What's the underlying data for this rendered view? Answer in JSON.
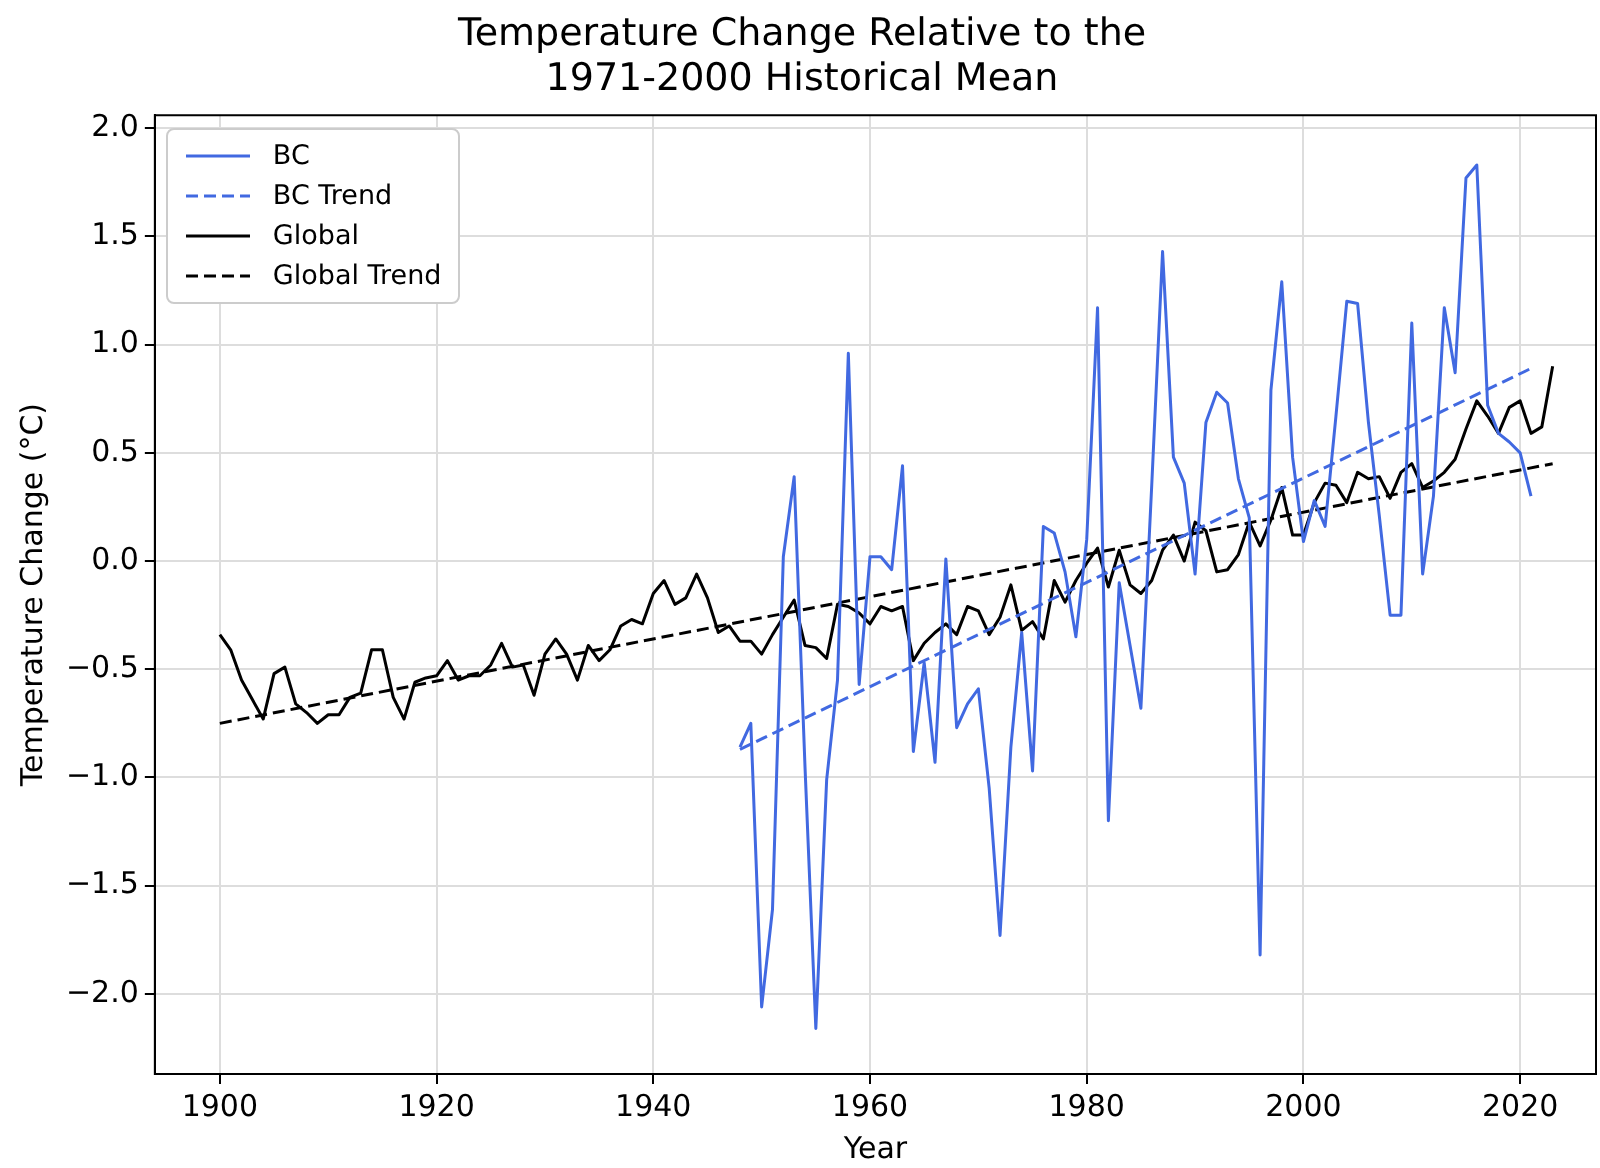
{
  "chart_data": {
    "type": "line",
    "title": "Temperature Change Relative to the\n1971-2000 Historical Mean",
    "xlabel": "Year",
    "ylabel": "Temperature Change (°C)",
    "xlim": [
      1894,
      2027
    ],
    "xticks": [
      1900,
      1920,
      1940,
      1960,
      1980,
      2000,
      2020
    ],
    "ylim": [
      -2.37,
      2.06
    ],
    "yticks": [
      {
        "value": -2,
        "label": "−2.0"
      },
      {
        "value": -1.5,
        "label": "−1.5"
      },
      {
        "value": -1,
        "label": "−1.0"
      },
      {
        "value": -0.5,
        "label": "−0.5"
      },
      {
        "value": 0,
        "label": "0.0"
      },
      {
        "value": 0.5,
        "label": "0.5"
      },
      {
        "value": 1,
        "label": "1.0"
      },
      {
        "value": 1.5,
        "label": "1.5"
      },
      {
        "value": 2,
        "label": "2.0"
      }
    ],
    "grid": true,
    "legend": "top left",
    "series": [
      {
        "name": "BC",
        "color": "#4169e1",
        "line_style": "solid",
        "x": [
          1948,
          1949,
          1950,
          1951,
          1952,
          1953,
          1954,
          1955,
          1956,
          1957,
          1958,
          1959,
          1960,
          1961,
          1962,
          1963,
          1964,
          1965,
          1966,
          1967,
          1968,
          1969,
          1970,
          1971,
          1972,
          1973,
          1974,
          1975,
          1976,
          1977,
          1978,
          1979,
          1980,
          1981,
          1982,
          1983,
          1984,
          1985,
          1986,
          1987,
          1988,
          1989,
          1990,
          1991,
          1992,
          1993,
          1994,
          1995,
          1996,
          1997,
          1998,
          1999,
          2000,
          2001,
          2002,
          2003,
          2004,
          2005,
          2006,
          2007,
          2008,
          2009,
          2010,
          2011,
          2012,
          2013,
          2014,
          2015,
          2016,
          2017,
          2018,
          2019,
          2020,
          2021
        ],
        "values": [
          -0.86,
          -0.75,
          -2.06,
          -1.61,
          0.02,
          0.39,
          -0.95,
          -2.16,
          -1.01,
          -0.55,
          0.96,
          -0.57,
          0.02,
          0.02,
          -0.04,
          0.44,
          -0.88,
          -0.47,
          -0.93,
          0.01,
          -0.77,
          -0.66,
          -0.59,
          -1.05,
          -1.73,
          -0.86,
          -0.33,
          -0.97,
          0.16,
          0.13,
          -0.05,
          -0.35,
          0.1,
          1.17,
          -1.2,
          -0.1,
          -0.39,
          -0.68,
          0.35,
          1.43,
          0.48,
          0.36,
          -0.06,
          0.64,
          0.78,
          0.73,
          0.38,
          0.2,
          -1.82,
          0.79,
          1.29,
          0.48,
          0.09,
          0.28,
          0.16,
          0.67,
          1.2,
          1.19,
          0.64,
          0.21,
          -0.25,
          -0.25,
          1.1,
          -0.06,
          0.3,
          1.17,
          0.87,
          1.77,
          1.83,
          0.72,
          0.59,
          0.55,
          0.5,
          0.3
        ]
      },
      {
        "name": "BC Trend",
        "color": "#4169e1",
        "line_style": "dashed",
        "x": [
          1948,
          2021
        ],
        "values": [
          -0.87,
          0.89
        ]
      },
      {
        "name": "Global",
        "color": "#000000",
        "line_style": "solid",
        "x": [
          1900,
          1901,
          1902,
          1903,
          1904,
          1905,
          1906,
          1907,
          1908,
          1909,
          1910,
          1911,
          1912,
          1913,
          1914,
          1915,
          1916,
          1917,
          1918,
          1919,
          1920,
          1921,
          1922,
          1923,
          1924,
          1925,
          1926,
          1927,
          1928,
          1929,
          1930,
          1931,
          1932,
          1933,
          1934,
          1935,
          1936,
          1937,
          1938,
          1939,
          1940,
          1941,
          1942,
          1943,
          1944,
          1945,
          1946,
          1947,
          1948,
          1949,
          1950,
          1951,
          1952,
          1953,
          1954,
          1955,
          1956,
          1957,
          1958,
          1959,
          1960,
          1961,
          1962,
          1963,
          1964,
          1965,
          1966,
          1967,
          1968,
          1969,
          1970,
          1971,
          1972,
          1973,
          1974,
          1975,
          1976,
          1977,
          1978,
          1979,
          1980,
          1981,
          1982,
          1983,
          1984,
          1985,
          1986,
          1987,
          1988,
          1989,
          1990,
          1991,
          1992,
          1993,
          1994,
          1995,
          1996,
          1997,
          1998,
          1999,
          2000,
          2001,
          2002,
          2003,
          2004,
          2005,
          2006,
          2007,
          2008,
          2009,
          2010,
          2011,
          2012,
          2013,
          2014,
          2015,
          2016,
          2017,
          2018,
          2019,
          2020,
          2021,
          2022,
          2023
        ],
        "values": [
          -0.34,
          -0.41,
          -0.55,
          -0.64,
          -0.73,
          -0.52,
          -0.49,
          -0.66,
          -0.7,
          -0.75,
          -0.71,
          -0.71,
          -0.63,
          -0.61,
          -0.41,
          -0.41,
          -0.63,
          -0.73,
          -0.56,
          -0.54,
          -0.53,
          -0.46,
          -0.55,
          -0.53,
          -0.53,
          -0.48,
          -0.38,
          -0.49,
          -0.48,
          -0.62,
          -0.43,
          -0.36,
          -0.43,
          -0.55,
          -0.39,
          -0.46,
          -0.41,
          -0.3,
          -0.27,
          -0.29,
          -0.15,
          -0.09,
          -0.2,
          -0.17,
          -0.06,
          -0.17,
          -0.33,
          -0.3,
          -0.37,
          -0.37,
          -0.43,
          -0.34,
          -0.26,
          -0.18,
          -0.39,
          -0.4,
          -0.45,
          -0.2,
          -0.21,
          -0.24,
          -0.29,
          -0.21,
          -0.23,
          -0.21,
          -0.46,
          -0.38,
          -0.33,
          -0.29,
          -0.34,
          -0.21,
          -0.23,
          -0.34,
          -0.26,
          -0.11,
          -0.32,
          -0.28,
          -0.36,
          -0.09,
          -0.19,
          -0.09,
          -0.01,
          0.06,
          -0.12,
          0.05,
          -0.11,
          -0.15,
          -0.09,
          0.05,
          0.12,
          0.0,
          0.18,
          0.14,
          -0.05,
          -0.04,
          0.03,
          0.18,
          0.07,
          0.19,
          0.34,
          0.12,
          0.12,
          0.27,
          0.36,
          0.35,
          0.27,
          0.41,
          0.38,
          0.39,
          0.29,
          0.41,
          0.45,
          0.34,
          0.37,
          0.41,
          0.47,
          0.61,
          0.74,
          0.67,
          0.59,
          0.71,
          0.74,
          0.59,
          0.62,
          0.9
        ]
      },
      {
        "name": "Global Trend",
        "color": "#000000",
        "line_style": "dashed",
        "x": [
          1900,
          2023
        ],
        "values": [
          -0.75,
          0.45
        ]
      }
    ]
  }
}
